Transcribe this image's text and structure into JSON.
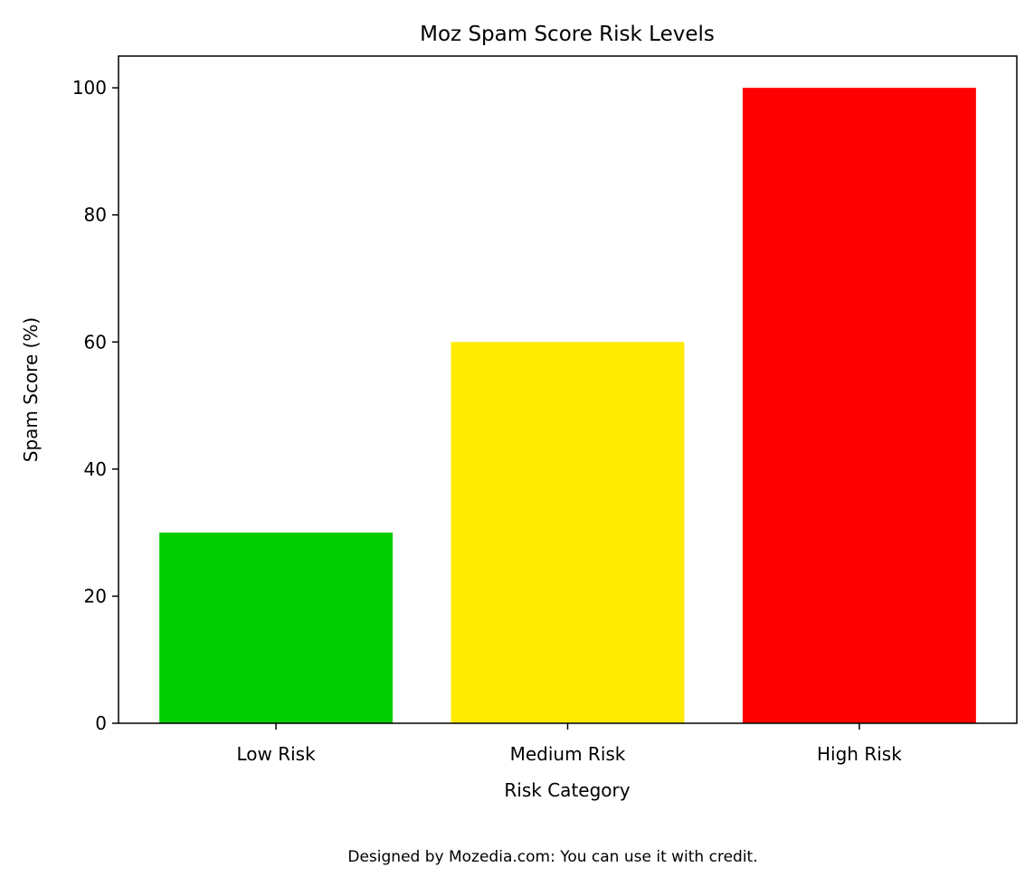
{
  "chart_data": {
    "type": "bar",
    "title": "Moz Spam Score Risk Levels",
    "xlabel": "Risk Category",
    "ylabel": "Spam Score (%)",
    "categories": [
      "Low Risk",
      "Medium Risk",
      "High Risk"
    ],
    "values": [
      30,
      60,
      100
    ],
    "colors": [
      "#00cc00",
      "#ffea00",
      "#ff0000"
    ],
    "ylim": [
      0,
      105
    ],
    "yticks": [
      0,
      20,
      40,
      60,
      80,
      100
    ],
    "grid": false,
    "legend": "none"
  },
  "footer": "Designed by Mozedia.com: You can use it with credit."
}
